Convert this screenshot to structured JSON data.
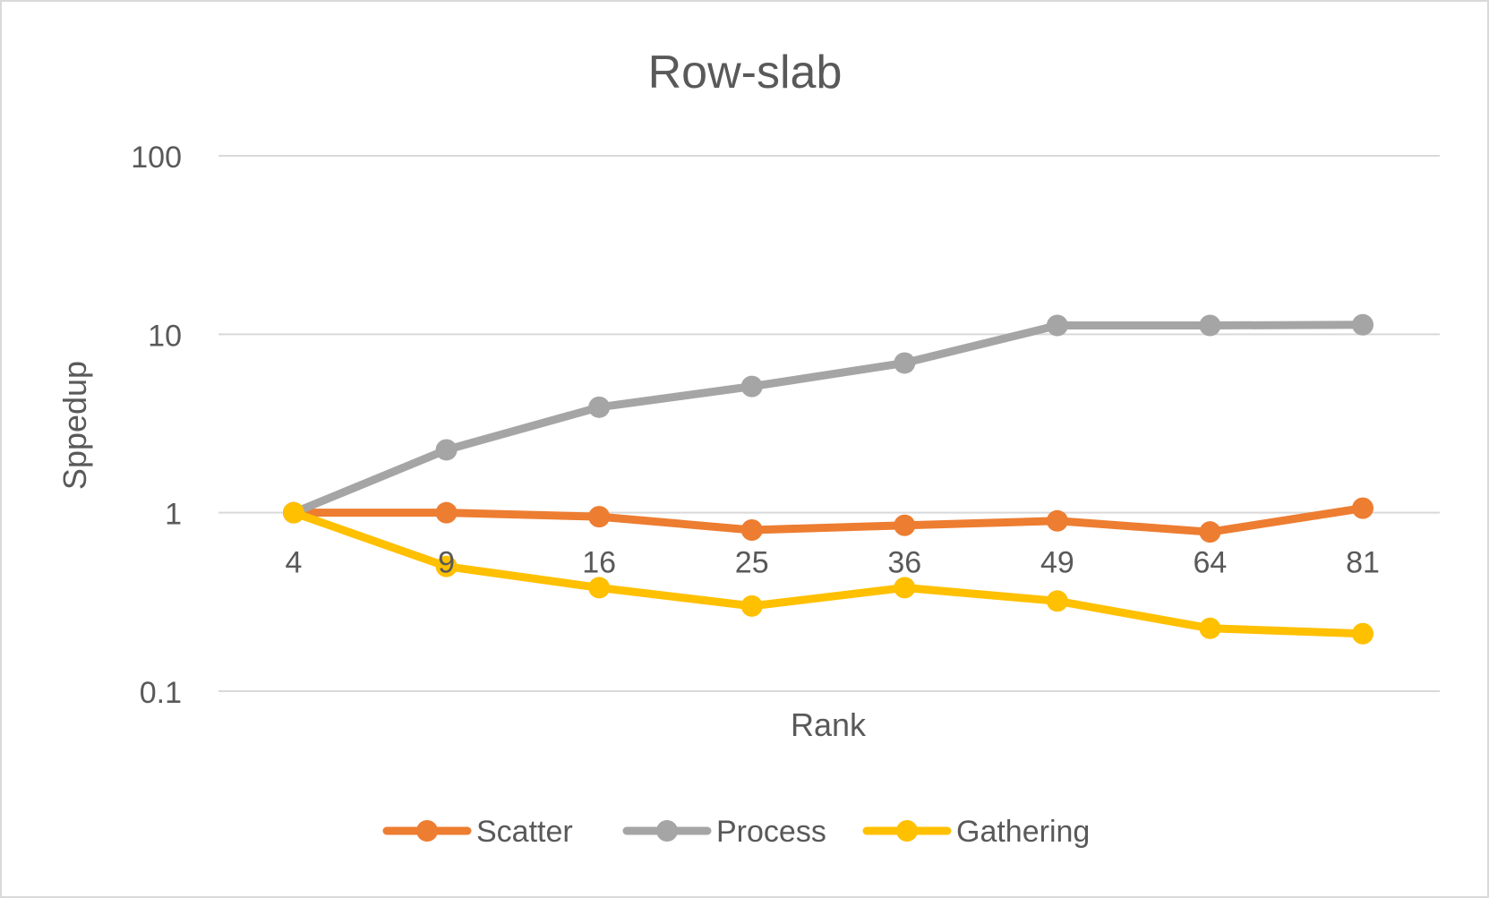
{
  "chart_data": {
    "type": "line",
    "title": "Row-slab",
    "xlabel": "Rank",
    "ylabel": "Sppedup",
    "yscale": "log",
    "ylim": [
      0.1,
      100
    ],
    "yticks": [
      "100",
      "10",
      "1",
      "0.1"
    ],
    "ytick_values": [
      100,
      10,
      1,
      0.1
    ],
    "categories": [
      "4",
      "9",
      "16",
      "25",
      "36",
      "49",
      "64",
      "81"
    ],
    "grid": true,
    "legend_position": "bottom",
    "series": [
      {
        "name": "Scatter",
        "color": "#ED7D31",
        "values": [
          1.0,
          1.0,
          0.95,
          0.8,
          0.85,
          0.9,
          0.78,
          1.06
        ]
      },
      {
        "name": "Process",
        "color": "#A5A5A5",
        "values": [
          1.0,
          2.25,
          3.9,
          5.1,
          6.9,
          11.2,
          11.2,
          11.3
        ]
      },
      {
        "name": "Gathering",
        "color": "#FFC000",
        "values": [
          1.0,
          0.5,
          0.38,
          0.3,
          0.38,
          0.32,
          0.225,
          0.21
        ]
      }
    ]
  }
}
